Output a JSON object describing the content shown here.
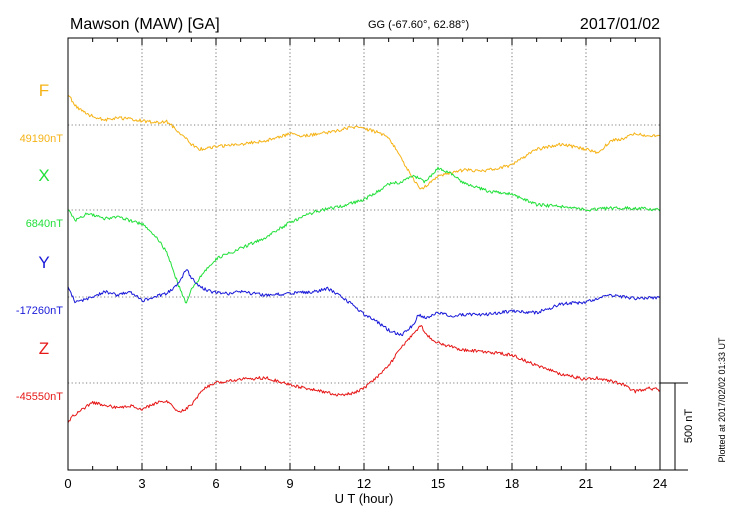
{
  "header": {
    "station": "Mawson (MAW)  [GA]",
    "coords": "GG (-67.60°,  62.88°)",
    "date": "2017/01/02"
  },
  "plotted_note": "Plotted at 2017/02/02 01:33 UT",
  "chart_data": {
    "type": "line",
    "xlabel": "U T (hour)",
    "xlim": [
      0,
      24
    ],
    "x_ticks": [
      "0",
      "3",
      "6",
      "9",
      "12",
      "15",
      "18",
      "21",
      "24"
    ],
    "nT_per_division": 500,
    "scale_bar_label": "500 nT",
    "grid": true,
    "series": [
      {
        "name": "F",
        "baseline_label": "49190nT",
        "color": "#f5b316",
        "x": [
          0,
          0.3,
          0.8,
          1.5,
          2,
          2.5,
          3,
          3.5,
          4,
          4.5,
          5,
          5.3,
          5.8,
          6.5,
          7,
          8,
          9,
          9.5,
          10,
          11,
          11.5,
          12,
          12.5,
          13,
          13.5,
          14,
          14.3,
          14.6,
          15,
          16,
          17,
          18,
          19,
          20,
          21,
          21.5,
          22,
          22.5,
          23,
          23.5,
          24
        ],
        "values": [
          49365,
          49300,
          49250,
          49220,
          49230,
          49225,
          49215,
          49205,
          49210,
          49150,
          49080,
          49050,
          49060,
          49075,
          49080,
          49100,
          49140,
          49125,
          49135,
          49160,
          49180,
          49170,
          49150,
          49120,
          49000,
          48880,
          48820,
          48850,
          48900,
          48930,
          48930,
          48960,
          49050,
          49080,
          49050,
          49030,
          49100,
          49110,
          49140,
          49130,
          49130
        ]
      },
      {
        "name": "X",
        "baseline_label": "6840nT",
        "color": "#22e03a",
        "x": [
          0,
          0.3,
          0.8,
          1.5,
          2,
          2.5,
          3,
          3.5,
          4,
          4.5,
          4.8,
          5,
          5.5,
          6,
          7,
          8,
          9,
          10,
          11,
          12,
          12.5,
          13,
          13.5,
          14,
          14.5,
          15,
          15.5,
          16,
          17,
          18,
          19,
          20,
          21,
          22,
          23,
          24
        ],
        "values": [
          6840,
          6780,
          6820,
          6790,
          6800,
          6780,
          6760,
          6700,
          6600,
          6400,
          6300,
          6380,
          6480,
          6560,
          6620,
          6680,
          6770,
          6830,
          6860,
          6900,
          6940,
          6990,
          7000,
          7040,
          7000,
          7080,
          7050,
          7000,
          6950,
          6930,
          6870,
          6860,
          6840,
          6850,
          6850,
          6840
        ]
      },
      {
        "name": "Y",
        "baseline_label": "-17260nT",
        "color": "#1a1ad9",
        "x": [
          0,
          0.3,
          1,
          1.5,
          2,
          2.5,
          3,
          3.5,
          4,
          4.5,
          4.8,
          5,
          5.3,
          5.8,
          6.5,
          7,
          8,
          9,
          10,
          10.5,
          11,
          11.5,
          12,
          12.5,
          13,
          13.5,
          14,
          14.2,
          14.5,
          15,
          15.5,
          16,
          17,
          18,
          19,
          20,
          21,
          22,
          23,
          24
        ],
        "values": [
          -17200,
          -17290,
          -17260,
          -17230,
          -17250,
          -17230,
          -17280,
          -17260,
          -17240,
          -17180,
          -17100,
          -17150,
          -17200,
          -17230,
          -17240,
          -17230,
          -17250,
          -17240,
          -17230,
          -17210,
          -17250,
          -17300,
          -17360,
          -17400,
          -17450,
          -17480,
          -17420,
          -17360,
          -17380,
          -17350,
          -17370,
          -17360,
          -17360,
          -17340,
          -17350,
          -17300,
          -17290,
          -17250,
          -17270,
          -17260
        ]
      },
      {
        "name": "Z",
        "baseline_label": "-45550nT",
        "color": "#e61717",
        "x": [
          0,
          0.2,
          0.6,
          1,
          1.5,
          2,
          2.5,
          3,
          3.5,
          4,
          4.5,
          5,
          5.5,
          6,
          6.5,
          7,
          8,
          9,
          10,
          11,
          11.5,
          12,
          12.5,
          13,
          13.5,
          14,
          14.3,
          14.6,
          15,
          16,
          17,
          18,
          19,
          20,
          21,
          21.5,
          22,
          22.5,
          23,
          23.5,
          24
        ],
        "values": [
          -45780,
          -45740,
          -45700,
          -45660,
          -45680,
          -45690,
          -45680,
          -45700,
          -45670,
          -45650,
          -45720,
          -45680,
          -45580,
          -45550,
          -45540,
          -45530,
          -45520,
          -45560,
          -45590,
          -45620,
          -45610,
          -45580,
          -45520,
          -45450,
          -45350,
          -45270,
          -45220,
          -45280,
          -45320,
          -45360,
          -45370,
          -45390,
          -45450,
          -45500,
          -45530,
          -45520,
          -45540,
          -45560,
          -45600,
          -45580,
          -45590
        ]
      }
    ]
  }
}
